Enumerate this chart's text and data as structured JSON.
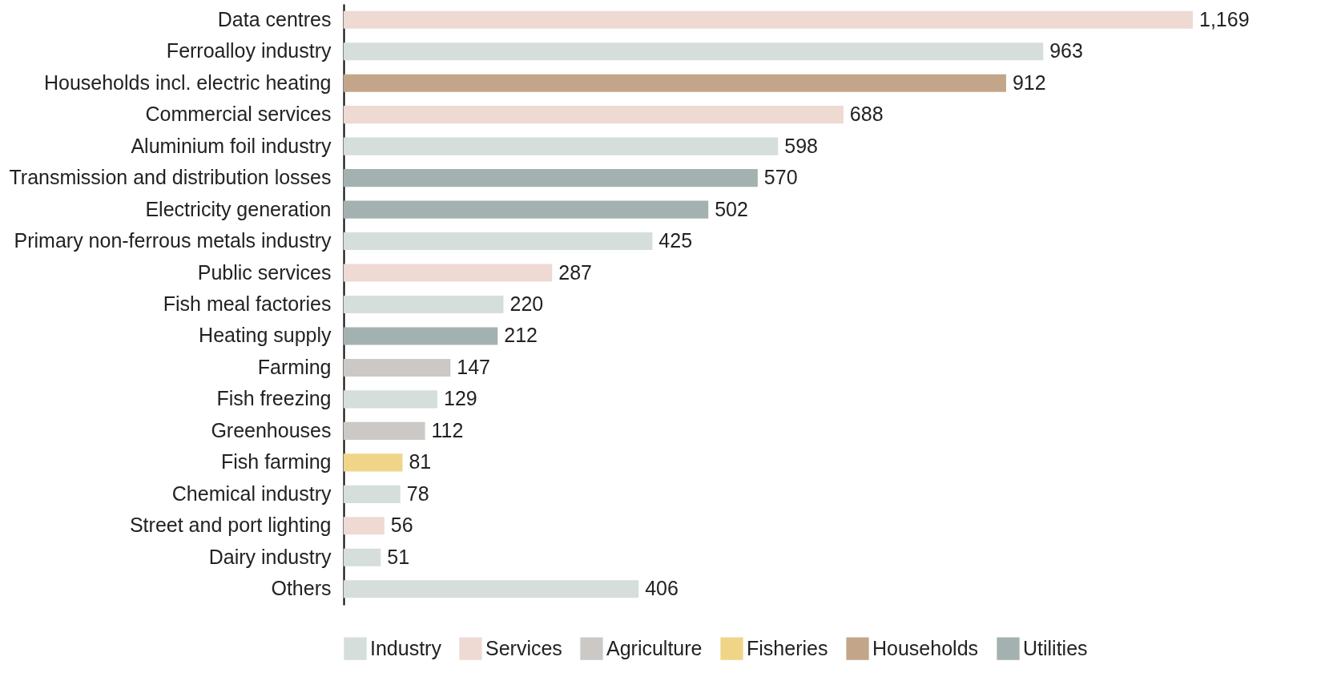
{
  "chart_data": {
    "type": "bar",
    "orientation": "horizontal",
    "legend": "bottom",
    "tick_labels": "y",
    "categories": [
      "Data centres",
      "Ferroalloy industry",
      "Households incl. electric heating",
      "Commercial services",
      "Aluminium foil industry",
      "Transmission and distribution losses",
      "Electricity generation",
      "Primary non-ferrous metals industry",
      "Public services",
      "Fish meal factories",
      "Heating supply",
      "Farming",
      "Fish freezing",
      "Greenhouses",
      "Fish farming",
      "Chemical industry",
      "Street and port lighting",
      "Dairy industry",
      "Others"
    ],
    "series": [
      {
        "name": "Industry",
        "color": "#d5dedb",
        "values": [
          null,
          963,
          null,
          null,
          598,
          null,
          null,
          425,
          null,
          220,
          null,
          null,
          129,
          null,
          null,
          78,
          null,
          51,
          406
        ],
        "value_labels": [
          null,
          "963",
          null,
          null,
          "598",
          null,
          null,
          "425",
          null,
          "220",
          null,
          null,
          "129",
          null,
          null,
          "78",
          null,
          "51",
          "406"
        ]
      },
      {
        "name": "Services",
        "color": "#eed9d3",
        "values": [
          1169,
          null,
          null,
          688,
          null,
          null,
          null,
          null,
          287,
          null,
          null,
          null,
          null,
          null,
          null,
          null,
          56,
          null,
          null
        ],
        "value_labels": [
          "1,169",
          null,
          null,
          "688",
          null,
          null,
          null,
          null,
          "287",
          null,
          null,
          null,
          null,
          null,
          null,
          null,
          "56",
          null,
          null
        ]
      },
      {
        "name": "Agriculture",
        "color": "#cbc8c5",
        "values": [
          null,
          null,
          null,
          null,
          null,
          null,
          null,
          null,
          null,
          null,
          null,
          147,
          null,
          112,
          null,
          null,
          null,
          null,
          null
        ],
        "value_labels": [
          null,
          null,
          null,
          null,
          null,
          null,
          null,
          null,
          null,
          null,
          null,
          "147",
          null,
          "112",
          null,
          null,
          null,
          null,
          null
        ]
      },
      {
        "name": "Fisheries",
        "color": "#f0d589",
        "values": [
          null,
          null,
          null,
          null,
          null,
          null,
          null,
          null,
          null,
          null,
          null,
          null,
          null,
          null,
          81,
          null,
          null,
          null,
          null
        ],
        "value_labels": [
          null,
          null,
          null,
          null,
          null,
          null,
          null,
          null,
          null,
          null,
          null,
          null,
          null,
          null,
          "81",
          null,
          null,
          null,
          null
        ]
      },
      {
        "name": "Households",
        "color": "#c3a68a",
        "values": [
          null,
          null,
          912,
          null,
          null,
          null,
          null,
          null,
          null,
          null,
          null,
          null,
          null,
          null,
          null,
          null,
          null,
          null,
          null
        ],
        "value_labels": [
          null,
          null,
          "912",
          null,
          null,
          null,
          null,
          null,
          null,
          null,
          null,
          null,
          null,
          null,
          null,
          null,
          null,
          null,
          null
        ]
      },
      {
        "name": "Utilities",
        "color": "#a3b2b0",
        "values": [
          null,
          null,
          null,
          null,
          null,
          570,
          502,
          null,
          null,
          null,
          212,
          null,
          null,
          null,
          null,
          null,
          null,
          null,
          null
        ],
        "value_labels": [
          null,
          null,
          null,
          null,
          null,
          "570",
          "502",
          null,
          null,
          null,
          "212",
          null,
          null,
          null,
          null,
          null,
          null,
          null,
          null
        ]
      }
    ]
  }
}
